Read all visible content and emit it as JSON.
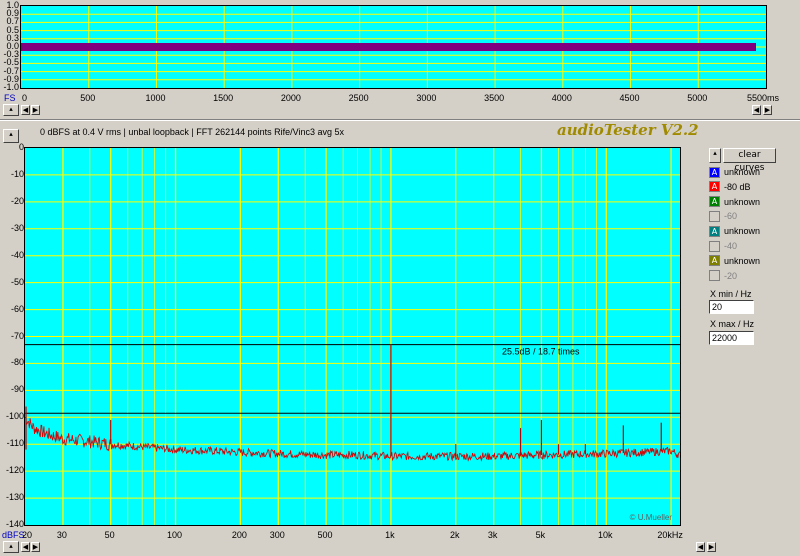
{
  "top_chart": {
    "y_ticks": [
      "1.0",
      "0.9",
      "0.7",
      "0.5",
      "0.3",
      "0.0",
      "-0.3",
      "-0.5",
      "-0.7",
      "-0.9",
      "-1.0"
    ],
    "x_ticks": [
      "0",
      "500",
      "1000",
      "1500",
      "2000",
      "2500",
      "3000",
      "3500",
      "4000",
      "4500",
      "5000",
      "5500ms"
    ],
    "fs_label": "FS",
    "signal_color": "#800080"
  },
  "main_chart": {
    "info_line": "0 dBFS at 0.4 V rms | unbal loopback | FFT 262144 points Rife/Vinc3 avg 5x",
    "brand": "audioTester V2.2",
    "y_ticks": [
      "0",
      "-10",
      "-20",
      "-30",
      "-40",
      "-50",
      "-60",
      "-70",
      "-80",
      "-90",
      "-100",
      "-110",
      "-120",
      "-130",
      "-140"
    ],
    "x_ticks": [
      "20",
      "30",
      "50",
      "100",
      "200",
      "300",
      "500",
      "1k",
      "2k",
      "3k",
      "5k",
      "10k",
      "20kHz"
    ],
    "y_unit_label": "dBFS",
    "annotation": "25.5dB / 18.7 times",
    "copyright": "© U.Mueller"
  },
  "chart_data": [
    {
      "type": "line",
      "title": "",
      "xlabel": "ms",
      "ylabel": "FS",
      "xlim": [
        0,
        5500
      ],
      "ylim": [
        -1.0,
        1.0
      ],
      "series": [
        {
          "color": "#800080",
          "x": [
            0,
            5500
          ],
          "values": [
            0.0,
            0.0
          ]
        }
      ]
    },
    {
      "type": "line",
      "title": "0 dBFS at 0.4 V rms | unbal loopback | FFT 262144 points Rife/Vinc3 avg 5x",
      "xlabel": "Hz",
      "ylabel": "dBFS",
      "x_scale": "log",
      "xlim": [
        20,
        22000
      ],
      "ylim": [
        -140,
        0
      ],
      "reference_lines_dB": [
        -73,
        -98.5
      ],
      "noise_floor": {
        "x": [
          20,
          22,
          25,
          30,
          40,
          50,
          70,
          100,
          150,
          200,
          300,
          500,
          700,
          1000,
          2000,
          3000,
          5000,
          10000,
          15000,
          20000,
          22000
        ],
        "values": [
          -100,
          -104,
          -106,
          -108,
          -109,
          -110,
          -111,
          -112,
          -112.5,
          -113,
          -113.5,
          -114,
          -114,
          -114.5,
          -114.5,
          -114.5,
          -114,
          -113.5,
          -113,
          -112.5,
          -114
        ]
      },
      "peaks": {
        "x": [
          50,
          1000,
          2000,
          4000,
          5000,
          6000,
          8000,
          12000,
          18000
        ],
        "values": [
          -101,
          -73,
          -110,
          -104,
          -101,
          -110,
          -110,
          -103,
          -102
        ]
      }
    }
  ],
  "legend": {
    "clear_label": "clear curves",
    "items": [
      {
        "ch": "A",
        "label": "unknown",
        "fill": "#0000ff",
        "enabled": true
      },
      {
        "ch": "A",
        "label": "-80 dB",
        "fill": "#ff0000",
        "enabled": true
      },
      {
        "ch": "A",
        "label": "unknown",
        "fill": "#008000",
        "enabled": true
      },
      {
        "ch": "",
        "label": "-60",
        "fill": "#d4d0c8",
        "enabled": false
      },
      {
        "ch": "A",
        "label": "unknown",
        "fill": "#008080",
        "enabled": true
      },
      {
        "ch": "",
        "label": "-40",
        "fill": "#d4d0c8",
        "enabled": false
      },
      {
        "ch": "A",
        "label": "unknown",
        "fill": "#808000",
        "enabled": true
      },
      {
        "ch": "",
        "label": "-20",
        "fill": "#d4d0c8",
        "enabled": false
      }
    ]
  },
  "fields": {
    "xmin_label": "X min / Hz",
    "xmin_value": "20",
    "xmax_label": "X max / Hz",
    "xmax_value": "22000"
  }
}
